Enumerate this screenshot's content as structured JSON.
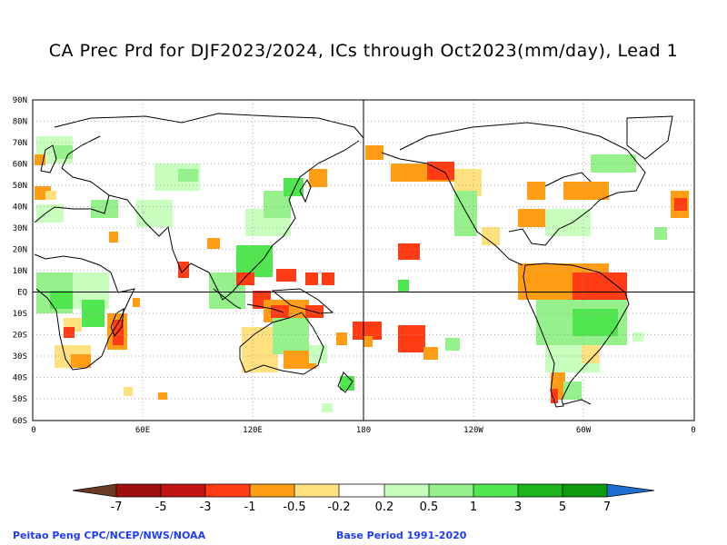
{
  "title": "CA Prec Prd for DJF2023/2024, ICs through Oct2023(mm/day), Lead 1",
  "map": {
    "lat_labels": [
      "90N",
      "80N",
      "70N",
      "60N",
      "50N",
      "40N",
      "30N",
      "20N",
      "10N",
      "EQ",
      "10S",
      "20S",
      "30S",
      "40S",
      "50S",
      "60S"
    ],
    "lon_labels": [
      "0",
      "60E",
      "120E",
      "180",
      "120W",
      "60W",
      "0"
    ],
    "reference_lines": [
      "Equator",
      "180 meridian"
    ],
    "grid": "dotted"
  },
  "legend": {
    "tick_labels": [
      "-7",
      "-5",
      "-3",
      "-1",
      "-0.5",
      "-0.2",
      "0.2",
      "0.5",
      "1",
      "3",
      "5",
      "7"
    ],
    "colors": [
      "#6b3a24",
      "#9e0f0f",
      "#c21414",
      "#ff3c14",
      "#ff9e14",
      "#ffe180",
      "#ffffff",
      "#c8ffbe",
      "#96f08c",
      "#50e650",
      "#1eb41e",
      "#0f9b0f",
      "#1e6ed2"
    ]
  },
  "footer": {
    "left": "Peitao Peng CPC/NCEP/NWS/NOAA",
    "right": "Base Period 1991-2020"
  }
}
